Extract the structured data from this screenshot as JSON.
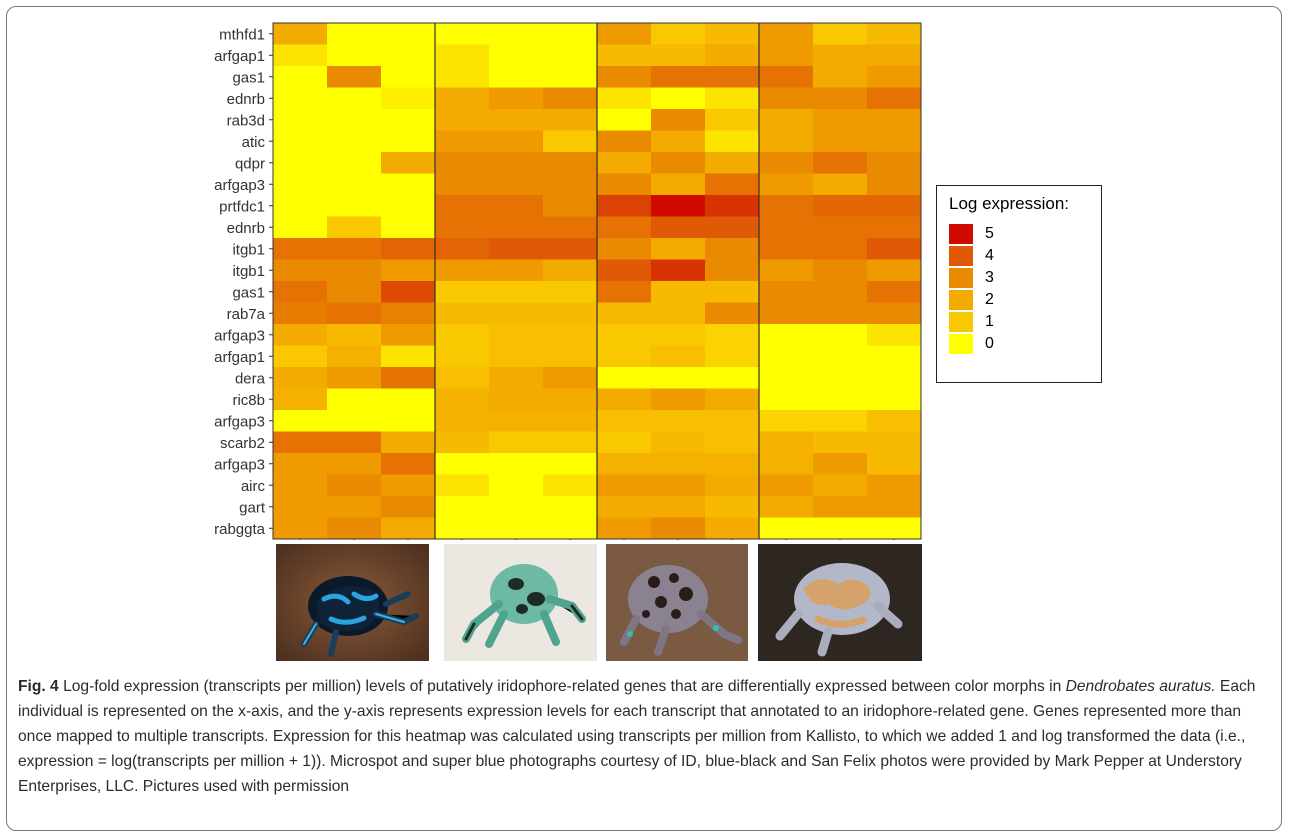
{
  "chart_data": {
    "type": "heatmap",
    "rows": [
      "mthfd1",
      "arfgap1",
      "gas1",
      "ednrb",
      "rab3d",
      "atic",
      "qdpr",
      "arfgap3",
      "prtfdc1",
      "ednrb",
      "itgb1",
      "itgb1",
      "gas1",
      "rab7a",
      "arfgap3",
      "arfgap1",
      "dera",
      "ric8b",
      "arfgap3",
      "scarb2",
      "arfgap3",
      "airc",
      "gart",
      "rabggta"
    ],
    "groups": 4,
    "columns_per_group": 3,
    "values": [
      [
        2,
        0,
        0,
        0,
        0,
        0,
        2.5,
        1,
        1.5,
        2.5,
        1,
        1.5
      ],
      [
        0.5,
        0,
        0,
        0.5,
        0,
        0,
        1.5,
        1.5,
        2,
        2.5,
        2,
        2
      ],
      [
        0,
        3,
        0,
        0.5,
        0,
        0,
        3,
        3.5,
        3.5,
        3.5,
        2,
        2.5
      ],
      [
        0,
        0,
        0.3,
        2,
        2.5,
        3,
        0.5,
        0,
        0.5,
        3,
        3,
        3.5
      ],
      [
        0,
        0,
        0,
        2,
        2,
        2,
        0,
        3,
        1,
        2,
        2.5,
        2.5
      ],
      [
        0,
        0,
        0,
        2.5,
        2.5,
        1,
        3,
        2,
        0.5,
        2,
        2.5,
        2.5
      ],
      [
        0,
        0,
        2,
        3,
        3,
        3,
        2,
        3,
        2,
        3,
        3.5,
        3
      ],
      [
        0,
        0,
        0,
        3,
        3,
        3,
        3,
        2,
        3.5,
        2.5,
        2,
        3
      ],
      [
        0,
        0,
        0,
        3.5,
        3.5,
        3,
        4.3,
        5,
        4.5,
        3.5,
        3.7,
        3.7
      ],
      [
        0,
        1,
        0,
        3.5,
        3.5,
        3.5,
        3.5,
        4,
        4,
        3.5,
        3.5,
        3.5
      ],
      [
        3.5,
        3.5,
        3.8,
        3.8,
        4,
        4,
        3,
        2,
        3,
        3.5,
        3.5,
        4
      ],
      [
        3,
        3,
        2.5,
        2.5,
        2.5,
        2,
        4,
        4.5,
        3,
        2.5,
        3,
        2.5
      ],
      [
        3.5,
        3,
        4.2,
        1,
        1,
        1,
        3.5,
        1.5,
        1.5,
        3,
        3,
        3.5
      ],
      [
        3.3,
        3.5,
        3.2,
        1.5,
        1.5,
        1.5,
        1.5,
        1.5,
        3,
        3,
        3,
        3
      ],
      [
        2,
        1.5,
        2.5,
        1,
        1.3,
        1.3,
        1,
        1,
        0.8,
        0,
        0,
        0.5
      ],
      [
        1,
        1.8,
        0.5,
        1,
        1.3,
        1.3,
        1,
        1.3,
        0.8,
        0,
        0,
        0
      ],
      [
        2,
        2.5,
        3.5,
        1.3,
        2,
        2.5,
        0,
        0,
        0,
        0,
        0,
        0
      ],
      [
        1.8,
        0,
        0,
        1.8,
        2,
        2,
        2,
        2.5,
        2,
        0,
        0,
        0
      ],
      [
        0,
        0,
        0,
        1.8,
        1.8,
        1.8,
        1.3,
        1.3,
        1.3,
        0.8,
        0.8,
        1.3
      ],
      [
        3.5,
        3.5,
        2,
        1.5,
        1,
        1,
        1,
        1.5,
        1.3,
        1.8,
        1.5,
        1.5
      ],
      [
        2.5,
        2.5,
        3.5,
        0,
        0,
        0,
        1.8,
        1.8,
        1.8,
        1.8,
        2.5,
        1.5
      ],
      [
        2.5,
        3,
        2.5,
        0.5,
        0,
        0.5,
        2.5,
        2.5,
        2,
        2.5,
        2,
        2.5
      ],
      [
        2.5,
        2.5,
        3,
        0,
        0,
        0,
        2,
        2,
        1.5,
        2,
        2.5,
        2.5
      ],
      [
        2.5,
        3,
        2,
        0,
        0,
        0,
        2.5,
        3,
        2,
        0,
        0,
        0
      ]
    ],
    "legend": {
      "title": "Log expression:",
      "labels": [
        "5",
        "4",
        "3",
        "2",
        "1",
        "0"
      ],
      "colors": [
        "#d10a00",
        "#e05a05",
        "#ea8a00",
        "#f4ab00",
        "#fac800",
        "#ffff00"
      ]
    }
  },
  "caption": {
    "figure_label": "Fig. 4",
    "text_1": " Log-fold expression (transcripts per million) levels of putatively iridophore-related genes that are differentially expressed between color morphs in ",
    "species": "Dendrobates auratus.",
    "text_2": " Each individual is represented on the x-axis, and the y-axis represents expression levels for each transcript that annotated to an iridophore-related gene. Genes represented more than once mapped to multiple transcripts. Expression for this heatmap was calculated using transcripts per million from Kallisto, to which we added 1 and log transformed the data (i.e., expression = log(transcripts per million + 1)). Microspot and super blue photographs courtesy of ID, blue-black and San Felix photos were provided by Mark Pepper at Understory Enterprises, LLC. Pictures used with permission"
  },
  "photos": [
    "blue-black-frog-photo",
    "green-black-frog-photo",
    "microspot-frog-photo",
    "san-felix-frog-photo"
  ]
}
